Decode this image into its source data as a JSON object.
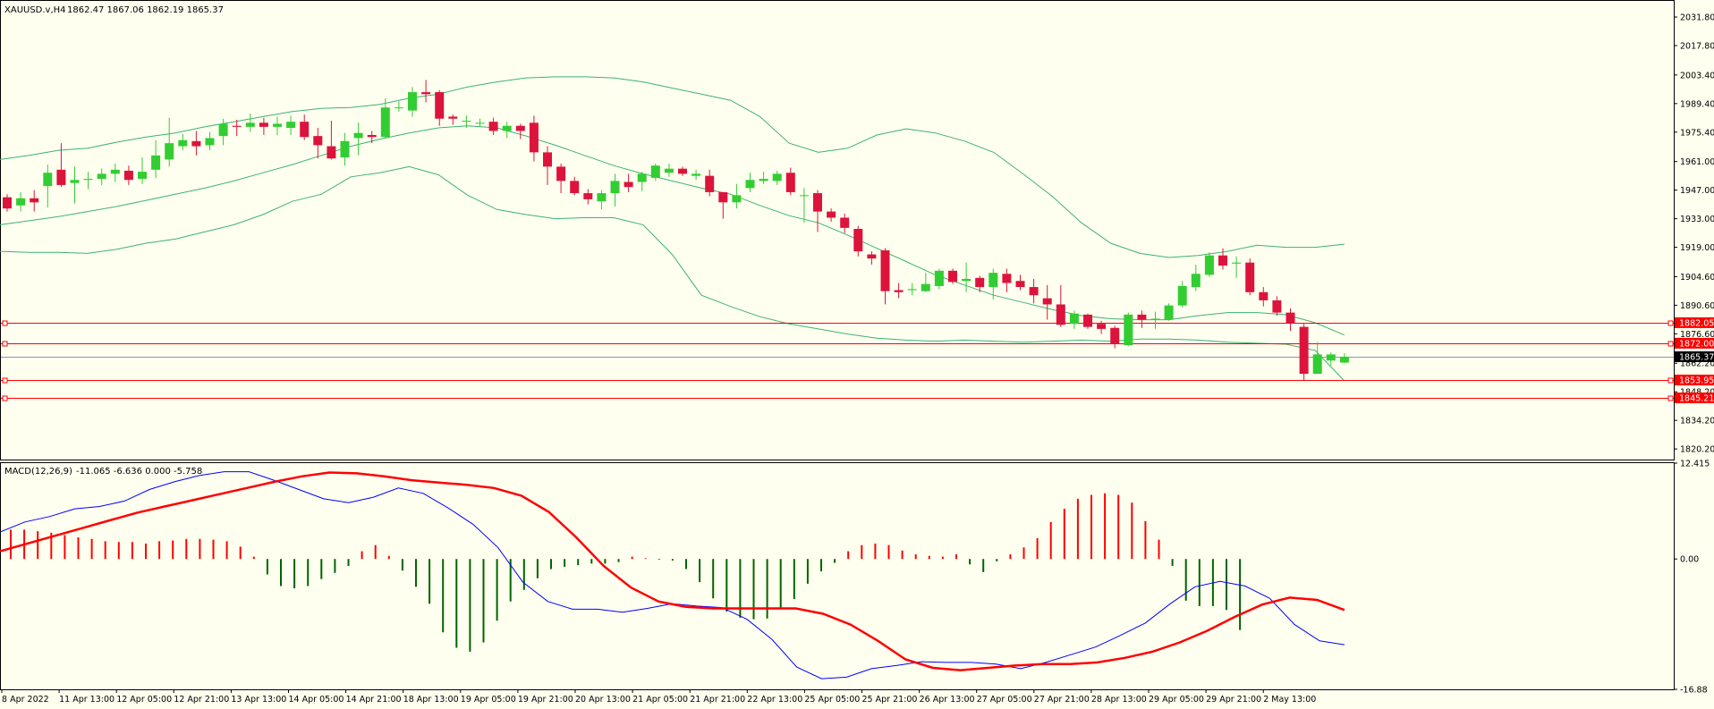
{
  "colors": {
    "background": "#fffff0",
    "frame": "#000000",
    "bull": "#32cd32",
    "bear": "#dc143c",
    "band": "#3cb371",
    "level": "#ff0000",
    "bid_line": "#8c96a8",
    "macd_line": "#0000ff",
    "signal_line": "#ff0000"
  },
  "main_header": {
    "symbol_label": "XAUUSD.v,H4",
    "ohlc_label": "1862.47 1867.06 1862.19 1865.37"
  },
  "macd_header": {
    "indicator_label": "MACD(12,26,9)",
    "values_label": "-11.065 -6.636 0.000 -5.758"
  },
  "chart_data": [
    {
      "type": "candlestick",
      "title": "XAUUSD.v,H4",
      "ylim": [
        1815.0,
        2039.7
      ],
      "y_tick_labels": [
        "2031.80",
        "2017.80",
        "2003.40",
        "1989.40",
        "1975.40",
        "1961.00",
        "1947.00",
        "1933.00",
        "1919.00",
        "1904.60",
        "1890.60",
        "1876.60",
        "1862.20",
        "1848.20",
        "1834.20",
        "1820.20"
      ],
      "current_price": 1865.37,
      "current_price_label": "1865.37",
      "horizontal_levels": [
        1882.05,
        1872.0,
        1853.95,
        1845.21
      ],
      "horizontal_level_labels": [
        "1882.05",
        "1872.00",
        "1853.95",
        "1845.21"
      ],
      "x_tick_labels": [
        "8 Apr 2022",
        "11 Apr 13:00",
        "12 Apr 05:00",
        "12 Apr 21:00",
        "13 Apr 13:00",
        "14 Apr 05:00",
        "14 Apr 21:00",
        "18 Apr 13:00",
        "19 Apr 05:00",
        "19 Apr 21:00",
        "20 Apr 13:00",
        "21 Apr 05:00",
        "21 Apr 21:00",
        "22 Apr 13:00",
        "25 Apr 05:00",
        "25 Apr 21:00",
        "26 Apr 13:00",
        "27 Apr 05:00",
        "27 Apr 21:00",
        "28 Apr 13:00",
        "29 Apr 05:00",
        "29 Apr 21:00",
        "2 May 13:00"
      ],
      "candles": [
        [
          1943.5,
          1938.0,
          1945.0,
          1936.5
        ],
        [
          1939.5,
          1943.0,
          1946.0,
          1936.5
        ],
        [
          1943.0,
          1941.0,
          1947.0,
          1936.5
        ],
        [
          1949.0,
          1955.5,
          1959.5,
          1938.5
        ],
        [
          1957.0,
          1949.5,
          1970.0,
          1948.5
        ],
        [
          1950.5,
          1952.0,
          1958.5,
          1940.5
        ],
        [
          1952.0,
          1952.5,
          1956.0,
          1947.5
        ],
        [
          1952.5,
          1955.0,
          1957.5,
          1949.5
        ],
        [
          1955.0,
          1957.0,
          1960.0,
          1951.0
        ],
        [
          1956.5,
          1952.0,
          1959.0,
          1949.5
        ],
        [
          1952.5,
          1956.0,
          1963.0,
          1950.0
        ],
        [
          1957.0,
          1964.0,
          1971.5,
          1953.0
        ],
        [
          1962.0,
          1970.0,
          1982.5,
          1958.5
        ],
        [
          1968.5,
          1971.5,
          1974.5,
          1966.5
        ],
        [
          1971.0,
          1968.5,
          1976.0,
          1964.0
        ],
        [
          1969.0,
          1972.5,
          1975.5,
          1966.5
        ],
        [
          1973.5,
          1979.5,
          1982.0,
          1969.0
        ],
        [
          1978.5,
          1978.0,
          1981.5,
          1973.5
        ],
        [
          1978.0,
          1980.0,
          1984.5,
          1975.5
        ],
        [
          1980.0,
          1978.0,
          1982.5,
          1974.0
        ],
        [
          1978.0,
          1979.5,
          1983.0,
          1974.0
        ],
        [
          1977.5,
          1980.5,
          1983.5,
          1974.0
        ],
        [
          1980.5,
          1973.0,
          1984.0,
          1971.5
        ],
        [
          1973.5,
          1969.0,
          1977.5,
          1962.5
        ],
        [
          1968.5,
          1962.5,
          1981.0,
          1962.0
        ],
        [
          1963.0,
          1971.0,
          1975.0,
          1959.0
        ],
        [
          1972.5,
          1975.0,
          1980.0,
          1964.0
        ],
        [
          1974.0,
          1973.0,
          1976.0,
          1970.0
        ],
        [
          1973.0,
          1987.5,
          1992.0,
          1972.5
        ],
        [
          1987.5,
          1987.5,
          1990.5,
          1985.5
        ],
        [
          1986.0,
          1995.0,
          1997.5,
          1983.0
        ],
        [
          1995.0,
          1994.0,
          2001.0,
          1990.0
        ],
        [
          1995.0,
          1982.0,
          1996.0,
          1978.5
        ],
        [
          1983.0,
          1982.0,
          1984.0,
          1979.0
        ],
        [
          1981.0,
          1981.0,
          1983.5,
          1977.5
        ],
        [
          1980.0,
          1980.0,
          1982.0,
          1978.0
        ],
        [
          1980.5,
          1976.0,
          1982.5,
          1974.0
        ],
        [
          1976.0,
          1978.5,
          1980.5,
          1972.5
        ],
        [
          1978.5,
          1976.0,
          1979.5,
          1972.0
        ],
        [
          1980.0,
          1965.5,
          1983.5,
          1961.0
        ],
        [
          1965.5,
          1958.5,
          1968.5,
          1949.5
        ],
        [
          1958.5,
          1951.5,
          1960.0,
          1945.5
        ],
        [
          1951.5,
          1945.5,
          1953.5,
          1944.5
        ],
        [
          1945.5,
          1942.5,
          1947.5,
          1940.0
        ],
        [
          1941.5,
          1945.5,
          1947.0,
          1937.5
        ],
        [
          1945.5,
          1951.5,
          1955.0,
          1939.0
        ],
        [
          1951.0,
          1948.5,
          1955.0,
          1946.0
        ],
        [
          1951.0,
          1955.0,
          1956.0,
          1946.5
        ],
        [
          1953.0,
          1959.0,
          1960.0,
          1951.5
        ],
        [
          1955.5,
          1957.5,
          1960.0,
          1953.5
        ],
        [
          1957.5,
          1955.0,
          1958.5,
          1954.0
        ],
        [
          1954.0,
          1955.0,
          1957.0,
          1952.0
        ],
        [
          1954.0,
          1946.0,
          1957.0,
          1944.0
        ],
        [
          1946.0,
          1941.0,
          1946.0,
          1933.0
        ],
        [
          1941.0,
          1944.5,
          1950.0,
          1938.0
        ],
        [
          1948.0,
          1952.0,
          1955.5,
          1946.0
        ],
        [
          1951.5,
          1952.5,
          1956.0,
          1950.0
        ],
        [
          1951.5,
          1955.0,
          1956.5,
          1949.5
        ],
        [
          1955.5,
          1946.0,
          1958.0,
          1944.5
        ],
        [
          1944.5,
          1944.5,
          1948.0,
          1931.0
        ],
        [
          1945.5,
          1936.5,
          1947.0,
          1926.5
        ],
        [
          1936.5,
          1933.5,
          1938.0,
          1931.5
        ],
        [
          1933.5,
          1928.5,
          1935.5,
          1926.0
        ],
        [
          1928.0,
          1917.0,
          1929.5,
          1914.5
        ],
        [
          1915.5,
          1913.5,
          1917.0,
          1910.5
        ],
        [
          1917.5,
          1897.5,
          1918.5,
          1891.0
        ],
        [
          1898.0,
          1897.0,
          1901.5,
          1894.0
        ],
        [
          1898.0,
          1898.5,
          1901.5,
          1895.5
        ],
        [
          1897.5,
          1901.0,
          1906.5,
          1897.0
        ],
        [
          1900.0,
          1907.5,
          1908.5,
          1898.5
        ],
        [
          1907.5,
          1902.0,
          1908.5,
          1901.0
        ],
        [
          1902.5,
          1903.5,
          1911.5,
          1897.0
        ],
        [
          1904.0,
          1899.5,
          1905.0,
          1897.0
        ],
        [
          1899.5,
          1906.5,
          1908.5,
          1893.5
        ],
        [
          1906.0,
          1901.5,
          1908.5,
          1897.0
        ],
        [
          1902.5,
          1899.5,
          1905.5,
          1898.0
        ],
        [
          1899.5,
          1895.5,
          1903.5,
          1891.5
        ],
        [
          1894.0,
          1891.0,
          1900.5,
          1883.5
        ],
        [
          1891.0,
          1881.0,
          1900.5,
          1880.0
        ],
        [
          1881.5,
          1886.5,
          1888.0,
          1879.0
        ],
        [
          1886.0,
          1880.0,
          1886.5,
          1879.0
        ],
        [
          1881.5,
          1879.0,
          1883.0,
          1876.5
        ],
        [
          1879.5,
          1871.5,
          1880.5,
          1869.5
        ],
        [
          1871.0,
          1886.0,
          1887.0,
          1870.5
        ],
        [
          1886.0,
          1883.5,
          1888.0,
          1879.5
        ],
        [
          1883.5,
          1884.0,
          1887.5,
          1879.0
        ],
        [
          1883.5,
          1890.5,
          1891.5,
          1883.0
        ],
        [
          1890.5,
          1900.0,
          1902.5,
          1889.5
        ],
        [
          1899.5,
          1906.0,
          1910.5,
          1897.5
        ],
        [
          1905.5,
          1915.0,
          1916.5,
          1904.5
        ],
        [
          1915.0,
          1910.0,
          1918.5,
          1908.0
        ],
        [
          1911.0,
          1911.5,
          1914.5,
          1904.0
        ],
        [
          1911.5,
          1897.0,
          1913.5,
          1895.5
        ],
        [
          1897.0,
          1893.0,
          1899.5,
          1890.0
        ],
        [
          1893.0,
          1887.0,
          1895.0,
          1885.5
        ],
        [
          1887.0,
          1882.0,
          1889.0,
          1878.0
        ],
        [
          1880.0,
          1857.0,
          1881.5,
          1853.5
        ],
        [
          1857.0,
          1866.5,
          1872.5,
          1857.5
        ],
        [
          1863.5,
          1866.5,
          1867.5,
          1861.0
        ],
        [
          1862.5,
          1865.4,
          1867.1,
          1862.2
        ]
      ],
      "bollinger_upper": [
        1962.0,
        1964.0,
        1966.5,
        1967.5,
        1970.5,
        1973.0,
        1975.0,
        1978.0,
        1980.5,
        1983.0,
        1985.5,
        1987.0,
        1987.5,
        1989.0,
        1992.0,
        1994.0,
        1997.5,
        2000.0,
        2002.0,
        2002.5,
        2002.5,
        2002.0,
        2000.0,
        1997.0,
        1994.0,
        1991.0,
        1983.0,
        1970.0,
        1965.5,
        1967.5,
        1974.0,
        1977.0,
        1975.0,
        1971.0,
        1965.5,
        1955.0,
        1944.0,
        1931.0,
        1921.0,
        1916.0,
        1914.0,
        1915.0,
        1917.0,
        1920.0,
        1919.0,
        1919.0,
        1920.5
      ],
      "bollinger_middle": [
        1930.0,
        1932.0,
        1934.0,
        1936.5,
        1939.0,
        1942.0,
        1945.0,
        1948.0,
        1951.5,
        1955.5,
        1959.5,
        1964.0,
        1968.5,
        1972.0,
        1975.0,
        1977.5,
        1978.5,
        1977.5,
        1973.5,
        1969.0,
        1964.0,
        1959.0,
        1955.0,
        1951.5,
        1948.0,
        1945.0,
        1939.5,
        1934.5,
        1931.0,
        1925.0,
        1918.5,
        1912.0,
        1905.5,
        1900.5,
        1895.5,
        1892.0,
        1888.5,
        1885.5,
        1884.0,
        1883.5,
        1883.5,
        1885.5,
        1887.0,
        1887.0,
        1886.0,
        1882.0,
        1876.0
      ],
      "bollinger_lower": [
        1917.0,
        1916.5,
        1916.5,
        1916.0,
        1918.0,
        1921.0,
        1923.0,
        1926.5,
        1930.0,
        1935.0,
        1941.5,
        1945.0,
        1953.5,
        1955.5,
        1958.5,
        1954.5,
        1944.5,
        1937.5,
        1935.0,
        1933.0,
        1933.5,
        1933.5,
        1930.0,
        1915.5,
        1895.5,
        1890.0,
        1885.0,
        1881.5,
        1879.0,
        1876.5,
        1874.5,
        1873.5,
        1873.0,
        1873.5,
        1873.0,
        1872.5,
        1873.0,
        1873.5,
        1873.0,
        1874.0,
        1874.0,
        1873.5,
        1872.5,
        1872.0,
        1871.5,
        1868.5,
        1853.5
      ]
    },
    {
      "type": "line",
      "title": "MACD(12,26,9)",
      "ylim": [
        -16.88,
        12.415
      ],
      "y_tick_labels": [
        "12.415",
        "0.00",
        "-16.88"
      ],
      "series": [
        {
          "values": [
            3.5,
            4.8,
            5.5,
            6.5,
            6.8,
            7.5,
            9.0,
            10.0,
            10.8,
            11.3,
            11.3,
            10.2,
            9.0,
            7.8,
            7.3,
            8.0,
            9.2,
            8.5,
            6.6,
            4.5,
            1.5,
            -3.0,
            -5.5,
            -6.5,
            -6.5,
            -6.9,
            -6.4,
            -5.8,
            -6.1,
            -6.3,
            -7.8,
            -10.4,
            -14.0,
            -15.5,
            -15.3,
            -14.2,
            -13.8,
            -13.3,
            -13.4,
            -13.4,
            -13.6,
            -14.2,
            -13.4,
            -12.4,
            -11.4,
            -9.9,
            -8.3,
            -5.8,
            -3.6,
            -2.9,
            -3.5,
            -5.1,
            -8.5,
            -10.6,
            -11.1
          ]
        },
        {
          "values": [
            1.0,
            2.0,
            3.0,
            4.0,
            5.0,
            6.0,
            6.8,
            7.6,
            8.4,
            9.2,
            10.0,
            10.7,
            11.2,
            11.1,
            10.7,
            10.2,
            9.9,
            9.6,
            9.2,
            8.2,
            6.1,
            2.8,
            -0.9,
            -3.7,
            -5.5,
            -6.2,
            -6.4,
            -6.4,
            -6.4,
            -6.4,
            -7.1,
            -8.5,
            -10.6,
            -13.0,
            -14.1,
            -14.4,
            -14.1,
            -13.8,
            -13.6,
            -13.6,
            -13.4,
            -12.8,
            -12.0,
            -10.8,
            -9.3,
            -7.5,
            -5.9,
            -5.0,
            -5.3,
            -6.6
          ]
        }
      ],
      "histogram": [
        3.8,
        3.8,
        3.6,
        3.4,
        3.1,
        2.8,
        2.6,
        2.3,
        2.2,
        2.2,
        2.0,
        2.3,
        2.4,
        2.6,
        2.6,
        2.5,
        2.3,
        1.6,
        0.3,
        -2.0,
        -3.5,
        -3.8,
        -3.5,
        -2.6,
        -1.8,
        -0.9,
        1.0,
        1.8,
        0.4,
        -1.5,
        -3.6,
        -5.8,
        -9.5,
        -11.5,
        -12.0,
        -10.8,
        -8.0,
        -5.5,
        -4.0,
        -2.5,
        -1.3,
        -1.0,
        -0.8,
        -0.6,
        -0.6,
        -0.4,
        0.3,
        0.1,
        -0.1,
        -0.2,
        -1.3,
        -3.0,
        -5.1,
        -6.8,
        -7.6,
        -7.8,
        -7.7,
        -6.5,
        -5.2,
        -3.2,
        -1.6,
        -0.5,
        1.0,
        1.8,
        2.0,
        1.8,
        1.1,
        0.6,
        0.4,
        0.3,
        0.6,
        -0.7,
        -1.7,
        -0.3,
        0.6,
        1.5,
        2.7,
        4.8,
        6.5,
        7.8,
        8.3,
        8.5,
        8.3,
        7.3,
        4.9,
        2.5,
        -0.9,
        -5.4,
        -6.1,
        -6.1,
        -6.6,
        -9.2
      ]
    }
  ]
}
